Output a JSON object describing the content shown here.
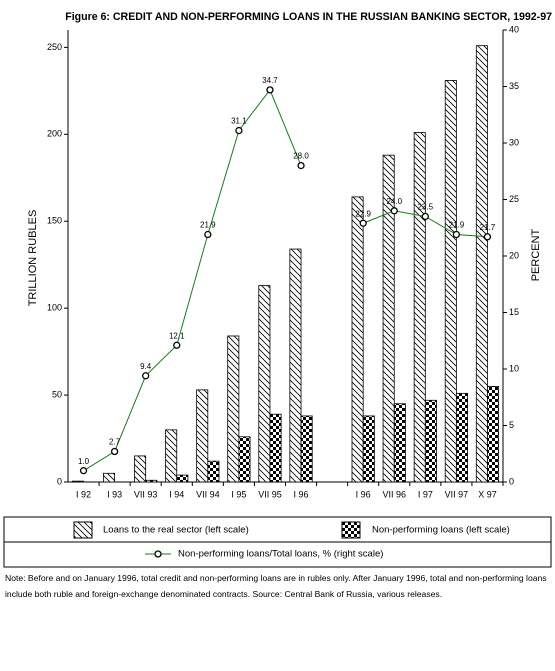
{
  "chart_data": {
    "type": "bar-line",
    "title": "Figure 6: CREDIT AND NON-PERFORMING LOANS IN THE RUSSIAN BANKING SECTOR, 1992-97",
    "ylabel": "TRILLION RUBLES",
    "y2label": "PERCENT",
    "categories": [
      "I 92",
      "I 93",
      "VII 93",
      "I 94",
      "VII 94",
      "I 95",
      "VII 95",
      "I 96",
      null,
      "I 96",
      "VII 96",
      "I 97",
      "VII 97",
      "X 97"
    ],
    "series": [
      {
        "name": "Loans to the real sector (left scale)",
        "color": "#000000",
        "pattern": "hatch",
        "values": [
          0.5,
          5,
          15,
          30,
          53,
          84,
          113,
          134,
          null,
          164,
          188,
          201,
          231,
          251
        ]
      },
      {
        "name": "Non-performing loans (left scale)",
        "color": "#000000",
        "pattern": "check",
        "values": [
          0,
          0,
          1,
          4,
          12,
          26,
          39,
          38,
          null,
          38,
          45,
          47,
          51,
          55
        ]
      },
      {
        "name": "Non-performing loans/Total loans, % (right scale)",
        "color": "#1a7a1a",
        "axis": "y2",
        "type": "line",
        "values": [
          1.0,
          2.7,
          9.4,
          12.1,
          21.9,
          31.1,
          34.7,
          28.0,
          null,
          22.9,
          24.0,
          23.5,
          21.9,
          21.7
        ],
        "value_labels": [
          "1.0",
          "2.7",
          "9.4",
          "12.1",
          "21.9",
          "31.1",
          "34.7",
          "28.0",
          null,
          "22.9",
          "24.0",
          "23.5",
          "21.9",
          "21.7"
        ]
      }
    ],
    "ylim": [
      0,
      260
    ],
    "yticks": [
      0,
      50,
      100,
      150,
      200,
      250
    ],
    "y2lim": [
      0,
      40
    ],
    "y2ticks": [
      0,
      5,
      10,
      15,
      20,
      25,
      30,
      35,
      40
    ],
    "note": "Note: Before and on January 1996, total  credit and non-performing loans are in rubles only. After January 1996, total and non-performing loans include both ruble and foreign-exchange denominated contracts. Source: Central Bank of Russia, various releases."
  }
}
